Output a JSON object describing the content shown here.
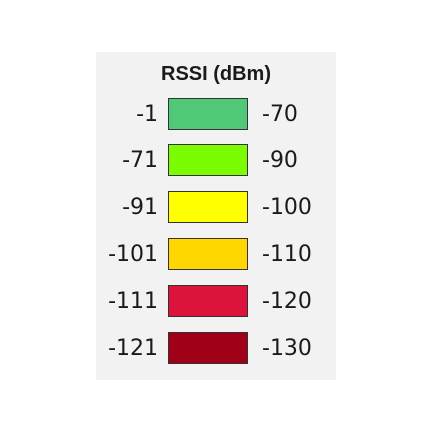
{
  "legend": {
    "title": "RSSI (dBm)",
    "rows": [
      {
        "min": "-1",
        "max": "-70",
        "color": "#50c878"
      },
      {
        "min": "-71",
        "max": "-90",
        "color": "#7cfc00"
      },
      {
        "min": "-91",
        "max": "-100",
        "color": "#ffff00"
      },
      {
        "min": "-101",
        "max": "-110",
        "color": "#ffd700"
      },
      {
        "min": "-111",
        "max": "-120",
        "color": "#dc143c"
      },
      {
        "min": "-121",
        "max": "-130",
        "color": "#a00018"
      }
    ]
  }
}
